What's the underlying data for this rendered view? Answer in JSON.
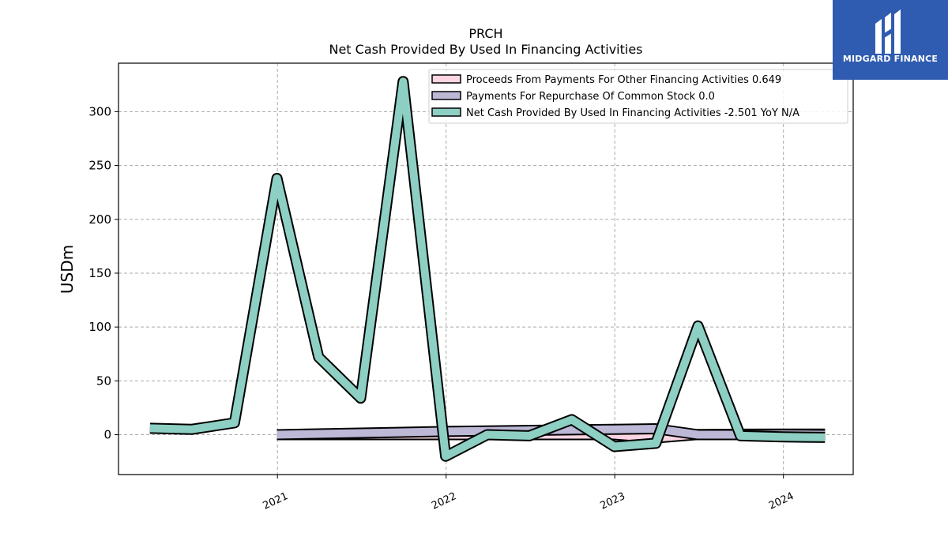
{
  "chart_data": {
    "type": "area",
    "title": "PRCH",
    "subtitle": "Net Cash Provided By Used In Financing Activities",
    "ylabel": "USDm",
    "xlabel": "",
    "ylim": [
      -37,
      345
    ],
    "yticks": [
      0,
      50,
      100,
      150,
      200,
      250,
      300
    ],
    "xlim": [
      "2020-01-23",
      "2024-05-31"
    ],
    "xticks": [
      {
        "date": "2021-01-01",
        "label": "2021"
      },
      {
        "date": "2022-01-01",
        "label": "2022"
      },
      {
        "date": "2023-01-01",
        "label": "2023"
      },
      {
        "date": "2024-01-01",
        "label": "2024"
      }
    ],
    "grid": true,
    "legend_position": "top-right",
    "series": [
      {
        "name": "Proceeds From Payments For Other Financing Activities",
        "legend_value": "0.649",
        "color": "#fcd5e3",
        "x": [
          "2020-12-31",
          "2021-12-31",
          "2022-12-31",
          "2023-03-31",
          "2023-06-30",
          "2023-09-30",
          "2023-12-31",
          "2024-03-31"
        ],
        "values": [
          0.0,
          0.0,
          0.0,
          -3.0,
          0.2,
          0.5,
          0.6,
          0.649
        ]
      },
      {
        "name": "Payments For Repurchase Of Common Stock",
        "legend_value": "0.0",
        "color": "#bcb8d6",
        "x": [
          "2020-12-31",
          "2021-12-31",
          "2022-12-31",
          "2023-03-31",
          "2023-06-30",
          "2023-09-30",
          "2023-12-31",
          "2024-03-31"
        ],
        "values": [
          0.0,
          3.0,
          5.0,
          5.5,
          0.0,
          0.0,
          0.3,
          0.0
        ]
      },
      {
        "name": "Net Cash Provided By Used In Financing Activities",
        "legend_value": "-2.501 YoY N/A",
        "color": "#8dcfc2",
        "x": [
          "2020-03-31",
          "2020-06-30",
          "2020-09-30",
          "2020-12-31",
          "2021-03-31",
          "2021-06-30",
          "2021-09-30",
          "2021-12-31",
          "2022-03-31",
          "2022-06-30",
          "2022-09-30",
          "2022-12-31",
          "2023-03-31",
          "2023-06-30",
          "2023-09-30",
          "2023-12-31",
          "2024-03-31"
        ],
        "values": [
          6.0,
          5.0,
          11.0,
          238.0,
          72.0,
          34.0,
          328.0,
          -20.0,
          0.0,
          -1.0,
          14.0,
          -11.0,
          -8.0,
          101.0,
          -1.0,
          -2.0,
          -2.501
        ]
      }
    ]
  },
  "logo": {
    "text": "MIDGARD FINANCE",
    "background": "#2f5cb0"
  }
}
